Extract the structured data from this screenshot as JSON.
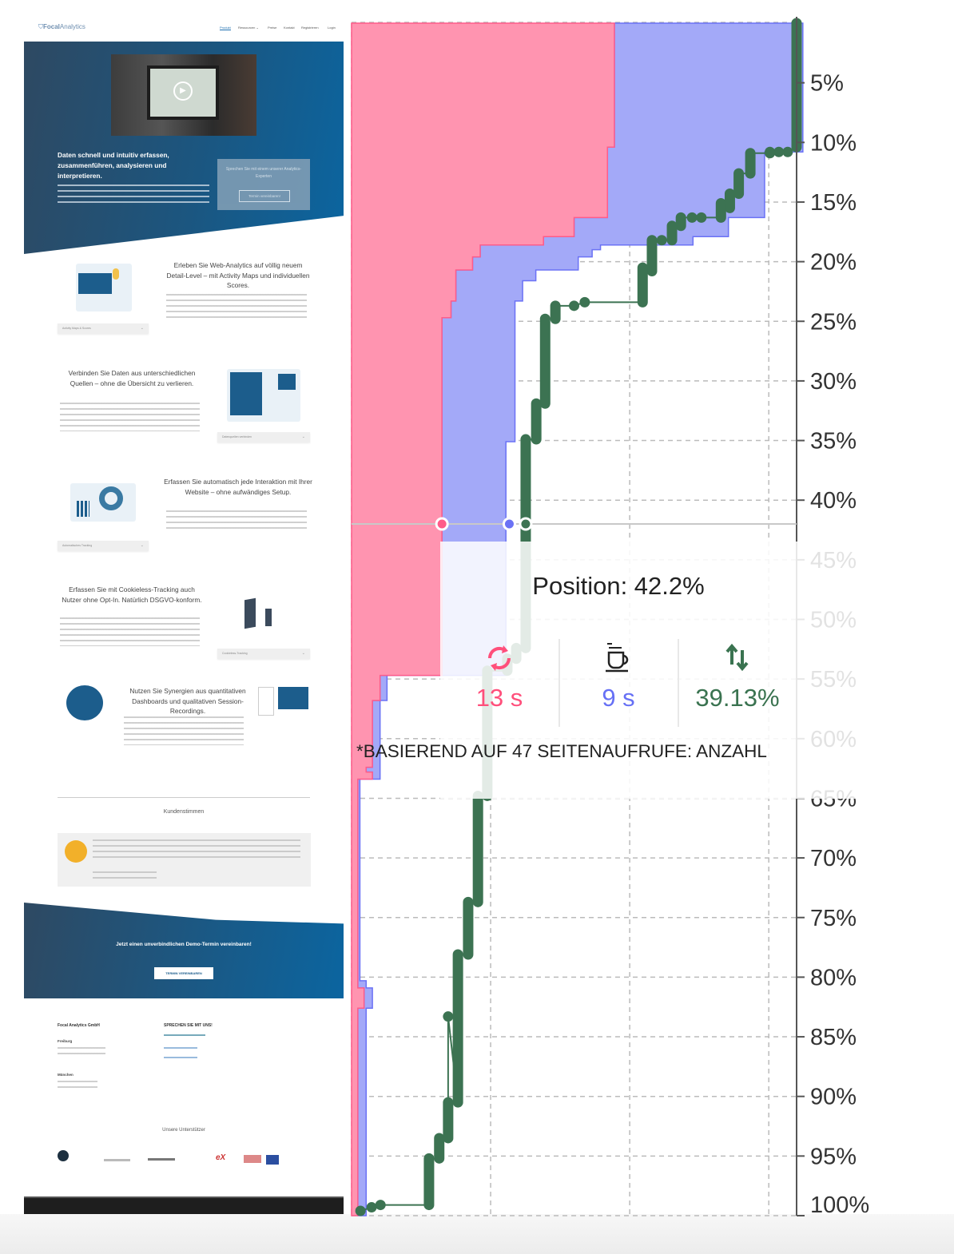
{
  "website": {
    "logo": {
      "bold": "Focal",
      "light": "Analytics"
    },
    "nav": [
      "Produkt",
      "Ressourcen ⌄",
      "Preise",
      "Kontakt",
      "Registrieren",
      "Login"
    ],
    "hero": {
      "headline": "Daten schnell und intuitiv erfassen, zusammenführen, analysieren und interpretieren.",
      "cta_text": "Sprechen Sie mit einem unserer Analytics-Experten",
      "cta_button": "Termin vereinbaren!"
    },
    "sections": [
      {
        "heading": "Erleben Sie Web-Analytics auf völlig neuem Detail-Level – mit Activity Maps und individuellen Scores.",
        "dropdown": "Activity Maps & Scores"
      },
      {
        "heading": "Verbinden Sie Daten aus unterschiedlichen Quellen – ohne die Übersicht zu verlieren.",
        "dropdown": "Datenquellen verbinden"
      },
      {
        "heading": "Erfassen Sie automatisch jede Interaktion mit Ihrer Website – ohne aufwändiges Setup.",
        "dropdown": "Automatisches Tracking"
      },
      {
        "heading": "Erfassen Sie mit Cookieless-Tracking auch Nutzer ohne Opt-In. Natürlich DSGVO-konform.",
        "dropdown": "Cookieless-Tracking"
      },
      {
        "heading": "Nutzen Sie Synergien aus quantitativen Dashboards und qualitativen Session-Recordings."
      }
    ],
    "testimonials_title": "Kundenstimmen",
    "cta": {
      "headline": "Jetzt einen unverbindlichen Demo-Termin vereinbaren!",
      "button": "TERMIN VEREINBAREN"
    },
    "footer": {
      "company": "Focal Analytics GmbH",
      "contact_title": "SPRECHEN SIE MIT UNS!",
      "city1": "Freiburg",
      "city2": "München",
      "supporters_title": "Unsere Unterstützer"
    }
  },
  "chart_data": {
    "type": "area",
    "orientation": "vertical (page depth runs top to bottom)",
    "y_axis": {
      "range": [
        0,
        100
      ],
      "unit": "%",
      "ticks": [
        "5%",
        "10%",
        "15%",
        "20%",
        "25%",
        "30%",
        "35%",
        "40%",
        "45%",
        "50%",
        "55%",
        "60%",
        "65%",
        "70%",
        "75%",
        "80%",
        "85%",
        "90%",
        "95%",
        "100%"
      ]
    },
    "x_axis_time_range_s": [
      0,
      64
    ],
    "x_axis_reach_range_pct": [
      0,
      100
    ],
    "grid": true,
    "colors": {
      "pink_fill": "#ff94b0",
      "pink_line": "#ff5c8a",
      "blue_fill": "#a3a9f8",
      "blue_line": "#6b72f5",
      "green": "#3c7352"
    },
    "time_rows": [
      {
        "from": 0,
        "to": 10.4,
        "pink_s": 37.8,
        "blue_s": 27.1
      },
      {
        "from": 10.4,
        "to": 10.8,
        "pink_s": 36.8,
        "blue_s": 28.1
      },
      {
        "from": 10.8,
        "to": 16.3,
        "pink_s": 36.8,
        "blue_s": 22.6
      },
      {
        "from": 16.3,
        "to": 17.9,
        "pink_s": 32,
        "blue_s": 22.2
      },
      {
        "from": 17.9,
        "to": 18.6,
        "pink_s": 27.6,
        "blue_s": 21.5
      },
      {
        "from": 18.6,
        "to": 19.0,
        "pink_s": 18.5,
        "blue_s": 17.3
      },
      {
        "from": 19.0,
        "to": 19.6,
        "pink_s": 18.5,
        "blue_s": 16.1
      },
      {
        "from": 19.6,
        "to": 20.7,
        "pink_s": 17.4,
        "blue_s": 15.2
      },
      {
        "from": 20.7,
        "to": 21.6,
        "pink_s": 15,
        "blue_s": 11.5
      },
      {
        "from": 21.6,
        "to": 23.3,
        "pink_s": 15,
        "blue_s": 9.6
      },
      {
        "from": 23.3,
        "to": 24.7,
        "pink_s": 14.3,
        "blue_s": 9.2
      },
      {
        "from": 24.7,
        "to": 35.1,
        "pink_s": 13,
        "blue_s": 10.5
      },
      {
        "from": 35.1,
        "to": 54.7,
        "pink_s": 13,
        "blue_s": 9.2
      },
      {
        "from": 54.7,
        "to": 56.8,
        "pink_s": 4.1,
        "blue_s": 1.0
      },
      {
        "from": 56.8,
        "to": 62.4,
        "pink_s": 3,
        "blue_s": 1.1
      },
      {
        "from": 62.4,
        "to": 62.8,
        "pink_s": 2.1,
        "blue_s": 2.0
      },
      {
        "from": 62.8,
        "to": 63.4,
        "pink_s": 3,
        "blue_s": 1.1
      },
      {
        "from": 63.4,
        "to": 80.3,
        "pink_s": 0.9,
        "blue_s": 0.3
      },
      {
        "from": 80.3,
        "to": 80.9,
        "pink_s": 0.9,
        "blue_s": 1.2
      },
      {
        "from": 80.9,
        "to": 82.6,
        "pink_s": 1.8,
        "blue_s": 1.2
      },
      {
        "from": 82.6,
        "to": 100,
        "pink_s": 0.9,
        "blue_s": 1.2
      }
    ],
    "reach_steps": [
      {
        "from": 0,
        "to": 10.4,
        "pct": 100
      },
      {
        "from": 10.8,
        "to": 10.8,
        "pct": 98
      },
      {
        "from": 10.8,
        "to": 10.8,
        "pct": 96
      },
      {
        "from": 10.8,
        "to": 10.9,
        "pct": 94
      },
      {
        "from": 10.9,
        "to": 12.6,
        "pct": 89.6
      },
      {
        "from": 12.6,
        "to": 14.3,
        "pct": 87
      },
      {
        "from": 14.3,
        "to": 15.5,
        "pct": 85
      },
      {
        "from": 15.1,
        "to": 16.3,
        "pct": 83
      },
      {
        "from": 16.3,
        "to": 16.3,
        "pct": 78.6
      },
      {
        "from": 16.3,
        "to": 16.3,
        "pct": 76.5
      },
      {
        "from": 16.3,
        "to": 17.0,
        "pct": 74
      },
      {
        "from": 17.0,
        "to": 18.2,
        "pct": 72
      },
      {
        "from": 18.2,
        "to": 18.2,
        "pct": 69.7
      },
      {
        "from": 18.2,
        "to": 20.8,
        "pct": 67.5
      },
      {
        "from": 20.5,
        "to": 23.4,
        "pct": 65.4
      },
      {
        "from": 23.4,
        "to": 23.4,
        "pct": 52.4
      },
      {
        "from": 23.7,
        "to": 23.7,
        "pct": 50
      },
      {
        "from": 23.7,
        "to": 24.8,
        "pct": 45.8
      },
      {
        "from": 24.8,
        "to": 31.9,
        "pct": 43.5
      },
      {
        "from": 31.9,
        "to": 34.9,
        "pct": 41.5
      },
      {
        "from": 34.9,
        "to": 52.4,
        "pct": 39.13
      },
      {
        "from": 52.4,
        "to": 53.3,
        "pct": 37
      },
      {
        "from": 53.3,
        "to": 54.3,
        "pct": 35
      },
      {
        "from": 54.3,
        "to": 64.8,
        "pct": 30.5
      },
      {
        "from": 64.8,
        "to": 73.7,
        "pct": 28.4
      },
      {
        "from": 73.7,
        "to": 78.1,
        "pct": 26.2
      },
      {
        "from": 78.1,
        "to": 90.5,
        "pct": 23.9
      },
      {
        "from": 83.3,
        "to": 83.3,
        "pct": 21.7
      },
      {
        "from": 90.5,
        "to": 93.5,
        "pct": 21.7
      },
      {
        "from": 93.5,
        "to": 95.2,
        "pct": 19.7
      },
      {
        "from": 95.2,
        "to": 99.1,
        "pct": 17.4
      },
      {
        "from": 99.1,
        "to": 99.1,
        "pct": 6.5
      },
      {
        "from": 99.3,
        "to": 99.3,
        "pct": 4.5
      },
      {
        "from": 99.6,
        "to": 99.6,
        "pct": 2
      }
    ],
    "hover": {
      "position_pct": 42.2,
      "pink_s": 13,
      "blue_s": 9,
      "reach_pct": 39.13
    }
  },
  "tooltip": {
    "position_label": "Position: 42.2%",
    "metrics": [
      {
        "icon": "refresh-icon",
        "value": "13 s",
        "color": "#ff4f7b"
      },
      {
        "icon": "coffee-cup-icon",
        "value": "9 s",
        "color": "#6670f5"
      },
      {
        "icon": "up-down-arrows-icon",
        "value": "39.13%",
        "color": "#3a7350"
      }
    ],
    "footnote": "*BASIEREND AUF 47 SEITENAUFRUFE: ANZAHL"
  }
}
